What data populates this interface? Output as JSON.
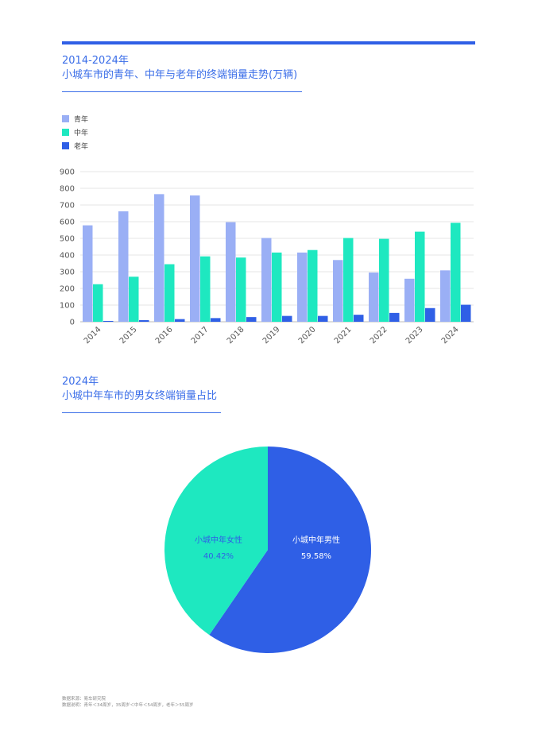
{
  "chart1": {
    "title_line1": "2014-2024年",
    "title_line2": "小城车市的青年、中年与老年的终端销量走势(万辆)",
    "legend": [
      {
        "label": "青年",
        "color": "#9aaff5"
      },
      {
        "label": "中年",
        "color": "#1ee8c0"
      },
      {
        "label": "老年",
        "color": "#2f5fe6"
      }
    ]
  },
  "chart2": {
    "title_line1": "2024年",
    "title_line2": "小城中年车市的男女终端销量占比"
  },
  "footer": {
    "line1": "数据来源：易车研究院",
    "line2": "数据说明：青年＜34周岁，35周岁＜中年＜54周岁，老年＞55周岁"
  },
  "chart_data": [
    {
      "type": "bar",
      "categories": [
        "2014",
        "2015",
        "2016",
        "2017",
        "2018",
        "2019",
        "2020",
        "2021",
        "2022",
        "2023",
        "2024"
      ],
      "series": [
        {
          "name": "青年",
          "color": "#9aaff5",
          "values": [
            578,
            662,
            765,
            757,
            597,
            502,
            415,
            370,
            295,
            258,
            308
          ]
        },
        {
          "name": "中年",
          "color": "#1ee8c0",
          "values": [
            225,
            270,
            345,
            392,
            385,
            415,
            430,
            502,
            497,
            540,
            593
          ]
        },
        {
          "name": "老年",
          "color": "#2f5fe6",
          "values": [
            5,
            10,
            16,
            22,
            28,
            35,
            35,
            42,
            53,
            82,
            102
          ]
        }
      ],
      "yticks": [
        0,
        100,
        200,
        300,
        400,
        500,
        600,
        700,
        800,
        900
      ],
      "ylim": [
        0,
        900
      ],
      "grid": true,
      "legend_position": "top-left"
    },
    {
      "type": "pie",
      "slices": [
        {
          "label": "小城中年男性",
          "value": 59.58,
          "value_label": "59.58%",
          "color": "#2f5fe6",
          "text_color": "#ffffff"
        },
        {
          "label": "小城中年女性",
          "value": 40.42,
          "value_label": "40.42%",
          "color": "#1ee8c0",
          "text_color": "#2f5fe6"
        }
      ]
    }
  ]
}
